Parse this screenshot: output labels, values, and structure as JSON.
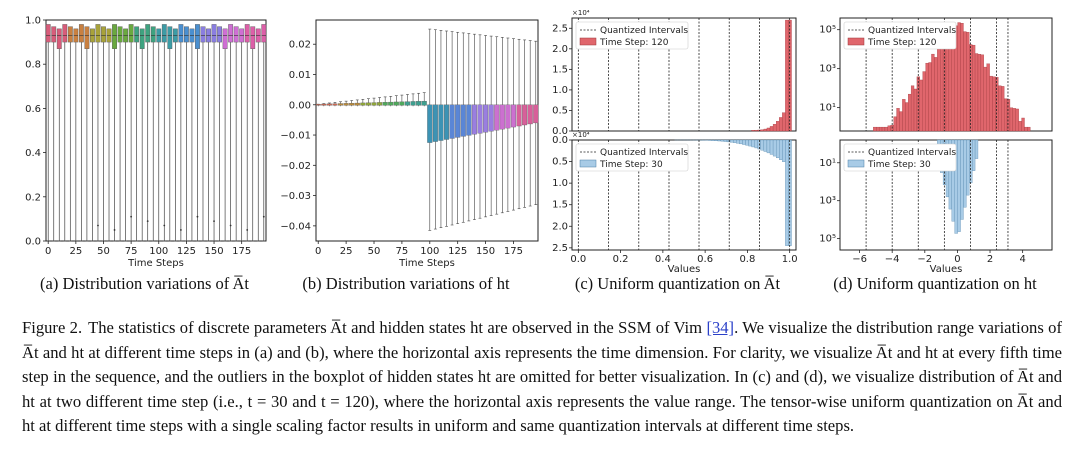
{
  "chart_data": [
    {
      "id": "a",
      "type": "boxplot",
      "caption": "(a) Distribution variations of A̅t",
      "xlabel": "Time Steps",
      "xticks": [
        "0",
        "25",
        "50",
        "75",
        "100",
        "125",
        "150",
        "175"
      ],
      "yticks": [
        "0.0",
        "0.2",
        "0.4",
        "0.6",
        "0.8",
        "1.0"
      ],
      "ylim": [
        0.0,
        1.0
      ],
      "xlim": [
        -2,
        197
      ],
      "step_interval": 5,
      "n_boxes": 40,
      "q1_approx": 0.9,
      "median_approx": 0.93,
      "q3_approx": 0.98,
      "whisker_low": 0.0,
      "whisker_high": 1.0,
      "colors": [
        "#d85c7a",
        "#c98040",
        "#a8a23a",
        "#6aa93f",
        "#3ea380",
        "#3c9ca6",
        "#4a8fd0",
        "#8a7ee0",
        "#cf6fd4",
        "#dd5fa8"
      ]
    },
    {
      "id": "b",
      "type": "boxplot",
      "caption": "(b) Distribution variations of ht",
      "xlabel": "Time Steps",
      "xticks": [
        "0",
        "25",
        "50",
        "75",
        "100",
        "125",
        "150",
        "175"
      ],
      "yticks": [
        "0.02",
        "0.01",
        "0.00",
        "−0.01",
        "−0.02",
        "−0.03",
        "−0.04"
      ],
      "ylim": [
        -0.045,
        0.028
      ],
      "xlim": [
        -2,
        197
      ],
      "step_interval": 5,
      "n_boxes": 40,
      "before_step_100": {
        "whisker_low": -0.0005,
        "whisker_high_start": 0.0002,
        "whisker_high_end": 0.004
      },
      "after_step_100": {
        "box_top": 0.0,
        "box_bottom_start": -0.0125,
        "box_bottom_end": -0.006,
        "whisker_high": 0.025,
        "whisker_low_start": -0.0415,
        "whisker_low_end": -0.033
      },
      "colors": [
        "#cf6a55",
        "#b98a3b",
        "#8fa53a",
        "#4fa85c",
        "#3e9f8f",
        "#3c93b4",
        "#5a86d6",
        "#9a7ee0",
        "#cc70d0",
        "#d8609a"
      ]
    },
    {
      "id": "c",
      "type": "histogram",
      "caption": "(c) Uniform quantization on A̅t",
      "xlabel": "Values",
      "xticks": [
        "0.0",
        "0.2",
        "0.4",
        "0.6",
        "0.8",
        "1.0"
      ],
      "xlim": [
        -0.03,
        1.03
      ],
      "quant_lines": [
        0.0,
        0.143,
        0.286,
        0.429,
        0.571,
        0.714,
        0.857,
        1.0
      ],
      "top": {
        "multiplier_label": "×10⁴",
        "yticks": [
          "0.0",
          "0.5",
          "1.0",
          "1.5",
          "2.0",
          "2.5"
        ],
        "ylim": [
          0.0,
          2.75
        ],
        "legend": [
          "Quantized Intervals",
          "Time Step: 120"
        ],
        "color": "#e0666c",
        "edge": "#9a3438"
      },
      "bottom": {
        "multiplier_label": "×10⁴",
        "yticks": [
          "0.0",
          "0.5",
          "1.0",
          "1.5",
          "2.0",
          "2.5"
        ],
        "ylim": [
          0.0,
          2.55
        ],
        "legend": [
          "Quantized Intervals",
          "Time Step: 30"
        ],
        "color": "#a8cbe6",
        "edge": "#4a7fa6"
      }
    },
    {
      "id": "d",
      "type": "histogram",
      "caption": "(d) Uniform quantization on ht",
      "xlabel": "Values",
      "xticks": [
        "−6",
        "−4",
        "−2",
        "0",
        "2",
        "4"
      ],
      "xlim": [
        -7.2,
        5.8
      ],
      "quant_lines": [
        -5.6,
        -4.0,
        -2.4,
        -0.8,
        0.8,
        2.4,
        3.1
      ],
      "top": {
        "scale": "log",
        "yticks": [
          "10¹",
          "10³",
          "10⁵"
        ],
        "ylim_log": [
          -0.2,
          5.6
        ],
        "legend": [
          "Quantized Intervals",
          "Time Step: 120"
        ],
        "color": "#e0666c",
        "edge": "#9a3438"
      },
      "bottom": {
        "scale": "log",
        "yticks": [
          "10¹",
          "10³",
          "10⁵"
        ],
        "ylim_log": [
          -0.2,
          5.6
        ],
        "legend": [
          "Quantized Intervals",
          "Time Step: 30"
        ],
        "color": "#a8cbe6",
        "edge": "#4a7fa6"
      }
    }
  ],
  "caption": {
    "label": "Figure 2.",
    "pre_ref": "The statistics of discrete parameters A̅t and hidden states ht are observed in the SSM of Vim",
    "ref": "[34]",
    "post_ref": ". We visualize the distribution range variations of A̅t and ht at different time steps in (a) and (b), where the horizontal axis represents the time dimension. For clarity, we visualize A̅t and ht at every fifth time step in the sequence, and the outliers in the boxplot of hidden states ht are omitted for better visualization. In (c) and (d), we visualize distribution of A̅t and ht at two different time step (i.e., t = 30 and t = 120), where the horizontal axis represents the value range. The tensor-wise uniform quantization on A̅t and ht at different time steps with a single scaling factor results in uniform and same quantization intervals at different time steps."
  }
}
